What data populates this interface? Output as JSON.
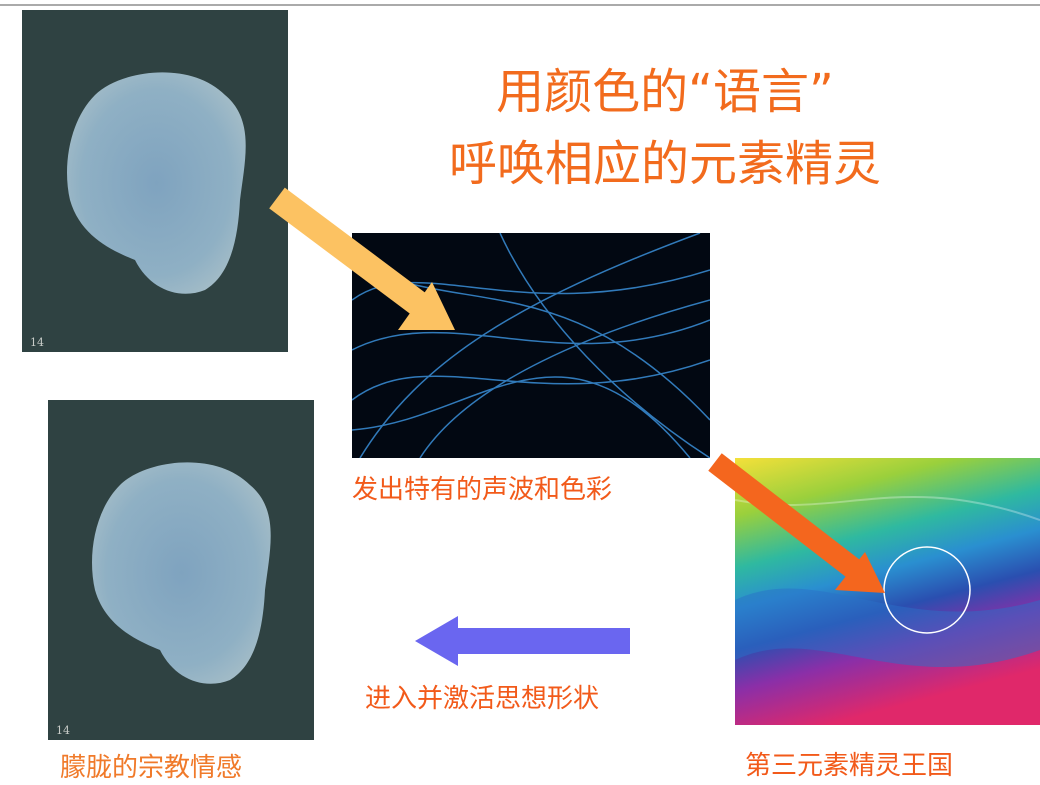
{
  "title": {
    "lines": [
      "用颜色的“语言”",
      "呼唤相应的元素精灵"
    ]
  },
  "paintings": [
    {
      "page_label": "14"
    },
    {
      "page_label": "14"
    }
  ],
  "captions": {
    "sound_color": "发出特有的声波和色彩",
    "enter": "进入并激活思想形状",
    "religious": "朦胧的宗教情感",
    "kingdom": "第三元素精灵王国"
  }
}
